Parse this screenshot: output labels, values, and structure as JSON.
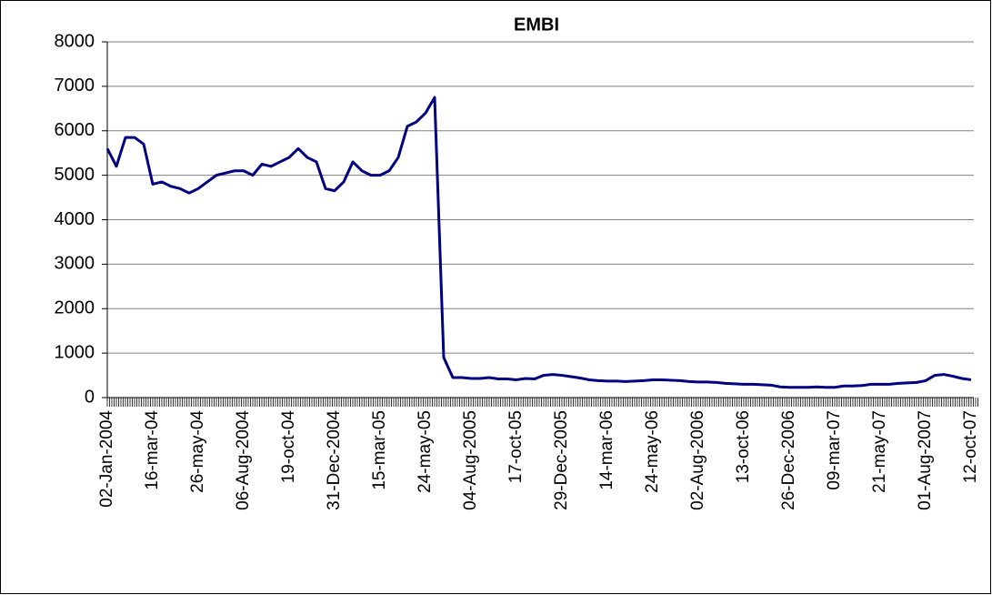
{
  "chart_data": {
    "type": "line",
    "title": "EMBI",
    "categories": [
      "02-Jan-2004",
      null,
      null,
      null,
      null,
      "16-mar-04",
      null,
      null,
      null,
      null,
      "26-may-04",
      null,
      null,
      null,
      null,
      "06-Aug-2004",
      null,
      null,
      null,
      null,
      "19-oct-04",
      null,
      null,
      null,
      null,
      "31-Dec-2004",
      null,
      null,
      null,
      null,
      "15-mar-05",
      null,
      null,
      null,
      null,
      "24-may-05",
      null,
      null,
      null,
      null,
      "04-Aug-2005",
      null,
      null,
      null,
      null,
      "17-oct-05",
      null,
      null,
      null,
      null,
      "29-Dec-2005",
      null,
      null,
      null,
      null,
      "14-mar-06",
      null,
      null,
      null,
      null,
      "24-may-06",
      null,
      null,
      null,
      null,
      "02-Aug-2006",
      null,
      null,
      null,
      null,
      "13-oct-06",
      null,
      null,
      null,
      null,
      "26-Dec-2006",
      null,
      null,
      null,
      null,
      "09-mar-07",
      null,
      null,
      null,
      null,
      "21-may-07",
      null,
      null,
      null,
      null,
      "01-Aug-2007",
      null,
      null,
      null,
      null,
      "12-oct-07"
    ],
    "series": [
      {
        "name": "EMBI",
        "color": "#000080",
        "values": [
          5600,
          5200,
          5850,
          5850,
          5700,
          4800,
          4850,
          4750,
          4700,
          4600,
          4700,
          4850,
          5000,
          5050,
          5100,
          5100,
          5000,
          5250,
          5200,
          5300,
          5400,
          5600,
          5400,
          5300,
          4700,
          4650,
          4850,
          5300,
          5100,
          5000,
          5000,
          5100,
          5400,
          6100,
          6200,
          6400,
          6750,
          900,
          450,
          450,
          430,
          430,
          450,
          420,
          420,
          400,
          430,
          420,
          500,
          520,
          500,
          470,
          440,
          400,
          380,
          370,
          370,
          360,
          370,
          380,
          400,
          400,
          390,
          380,
          360,
          350,
          350,
          340,
          320,
          310,
          300,
          300,
          290,
          280,
          240,
          230,
          230,
          230,
          240,
          230,
          230,
          260,
          260,
          270,
          300,
          300,
          300,
          320,
          330,
          340,
          380,
          500,
          520,
          480,
          430,
          400
        ]
      }
    ],
    "ylim": [
      0,
      8000
    ],
    "yticks": [
      0,
      1000,
      2000,
      3000,
      4000,
      5000,
      6000,
      7000,
      8000
    ],
    "grid": true
  }
}
